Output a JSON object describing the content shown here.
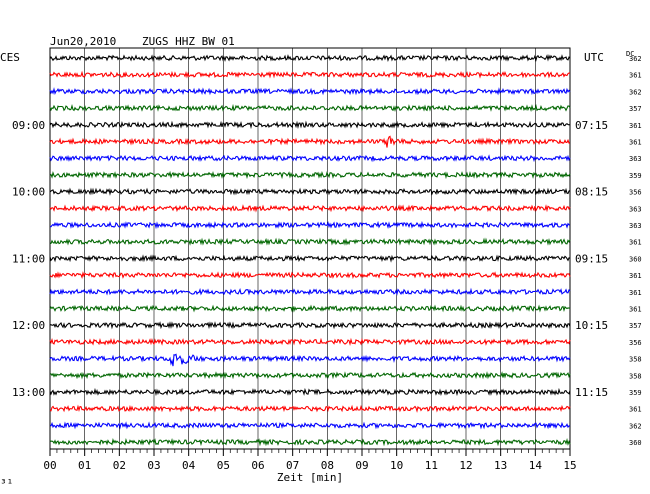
{
  "header": {
    "date": "Jun20,2010",
    "station": "ZUGS HHZ BW 01",
    "left_zone": "CES",
    "right_zone": "UTC",
    "dc_label": "DC"
  },
  "footer": {
    "corner_mark": "³¹",
    "xlabel": "Zeit [min]"
  },
  "chart_data": {
    "type": "line",
    "title": "Jun20,2010 ZUGS HHZ BW 01",
    "xlabel": "Zeit [min]",
    "ylabel": "",
    "xlim": [
      0,
      15
    ],
    "x_ticks": [
      "00",
      "01",
      "02",
      "03",
      "04",
      "05",
      "06",
      "07",
      "08",
      "09",
      "10",
      "11",
      "12",
      "13",
      "14",
      "15"
    ],
    "grid": true,
    "trace_colors": [
      "#000000",
      "#ff0000",
      "#0000ff",
      "#006600"
    ],
    "left_hour_labels": [
      {
        "trace": 4,
        "text": "09:00"
      },
      {
        "trace": 8,
        "text": "10:00"
      },
      {
        "trace": 12,
        "text": "11:00"
      },
      {
        "trace": 16,
        "text": "12:00"
      },
      {
        "trace": 20,
        "text": "13:00"
      }
    ],
    "right_hour_labels": [
      {
        "trace": 4,
        "text": "07:15"
      },
      {
        "trace": 8,
        "text": "08:15"
      },
      {
        "trace": 12,
        "text": "09:15"
      },
      {
        "trace": 16,
        "text": "10:15"
      },
      {
        "trace": 20,
        "text": "11:15"
      }
    ],
    "dc_offsets": [
      362,
      361,
      362,
      357,
      361,
      361,
      363,
      359,
      356,
      363,
      363,
      361,
      360,
      361,
      361,
      361,
      357,
      356,
      358,
      358,
      359,
      361,
      362,
      360
    ],
    "events": [
      {
        "trace": 5,
        "minute": 9.8,
        "amplitude": "small"
      },
      {
        "trace": 18,
        "minute": 3.5,
        "amplitude": "medium"
      }
    ]
  }
}
